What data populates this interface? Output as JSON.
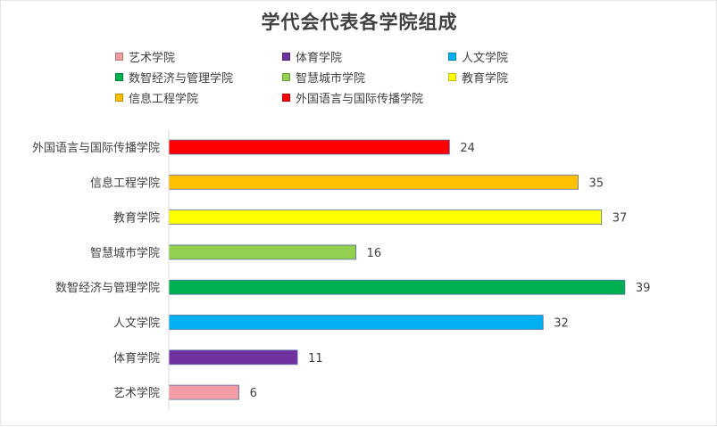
{
  "title": "学代会代表各学院组成",
  "legend": [
    {
      "label": "艺术学院",
      "color": "#f29ca5"
    },
    {
      "label": "体育学院",
      "color": "#7030a0"
    },
    {
      "label": "人文学院",
      "color": "#00b0f0"
    },
    {
      "label": "数智经济与管理学院",
      "color": "#00b050"
    },
    {
      "label": "智慧城市学院",
      "color": "#92d050"
    },
    {
      "label": "教育学院",
      "color": "#ffff00"
    },
    {
      "label": "信息工程学院",
      "color": "#ffc000"
    },
    {
      "label": "外国语言与国际传播学院",
      "color": "#ff0000"
    }
  ],
  "chart_data": {
    "type": "bar",
    "orientation": "horizontal",
    "title": "学代会代表各学院组成",
    "categories": [
      "外国语言与国际传播学院",
      "信息工程学院",
      "教育学院",
      "智慧城市学院",
      "数智经济与管理学院",
      "人文学院",
      "体育学院",
      "艺术学院"
    ],
    "values": [
      24,
      35,
      37,
      16,
      39,
      32,
      11,
      6
    ],
    "colors": [
      "#ff0000",
      "#ffc000",
      "#ffff00",
      "#92d050",
      "#00b050",
      "#00b0f0",
      "#7030a0",
      "#f29ca5"
    ],
    "xlim": [
      0,
      40
    ],
    "grid": false,
    "legend_position": "top"
  }
}
